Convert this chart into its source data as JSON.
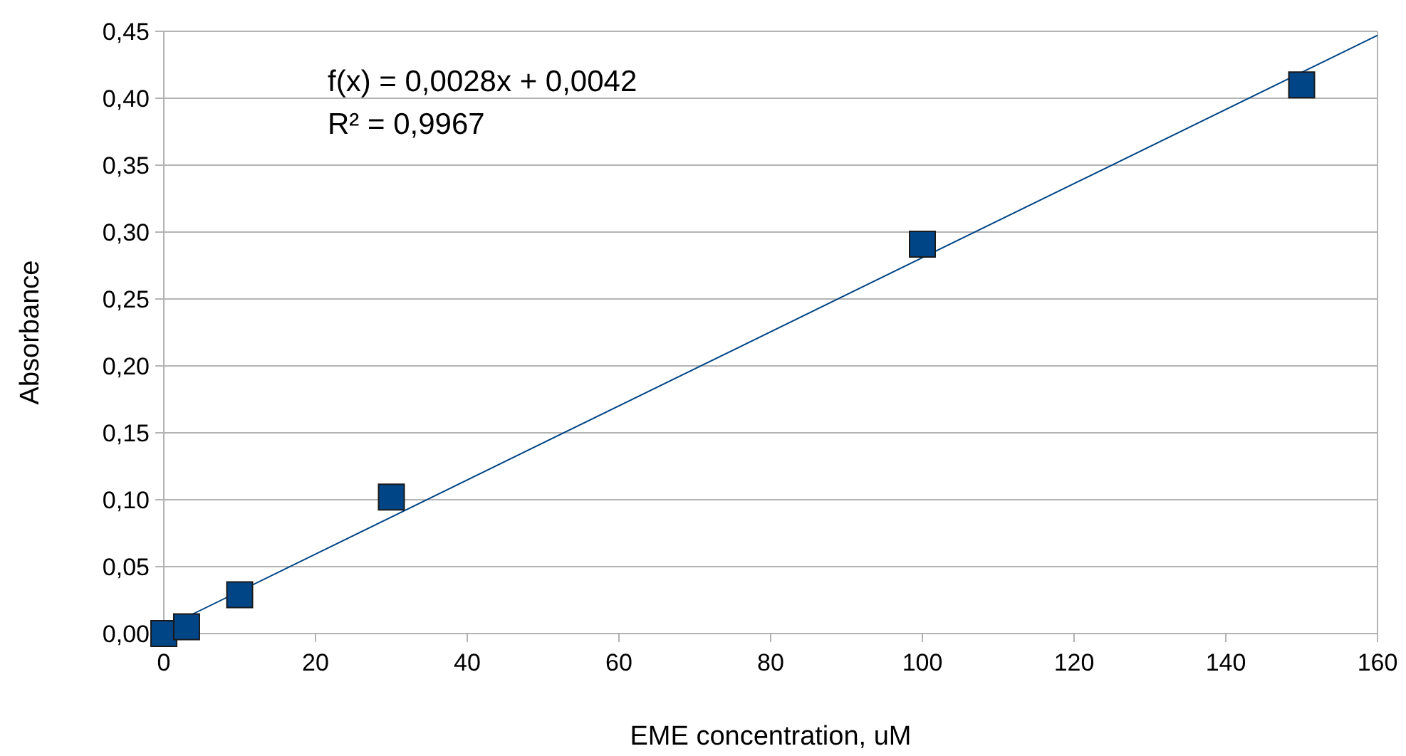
{
  "chart_data": {
    "type": "scatter",
    "xlabel": "EME concentration, uM",
    "ylabel": "Absorbance",
    "annotations": [
      "f(x) = 0,0028x + 0,0042",
      "R² = 0,9967"
    ],
    "series": [
      {
        "color": "#004586",
        "x": [
          0,
          3,
          10,
          30,
          100,
          150
        ],
        "values": [
          0,
          0.005,
          0.029,
          0.102,
          0.291,
          0.41
        ],
        "marker": "square"
      },
      {
        "type": "line",
        "color": "#004586",
        "x": [
          0,
          160
        ],
        "values": [
          0.004,
          0.447
        ],
        "line_style": "solid"
      }
    ],
    "xlim": [
      0,
      160
    ],
    "xticks": [
      0,
      20,
      40,
      60,
      80,
      100,
      120,
      140,
      160
    ],
    "ylim": [
      0,
      0.45
    ],
    "yticks": [
      {
        "value": 0,
        "label": "0,00"
      },
      {
        "value": 0.05,
        "label": "0,05"
      },
      {
        "value": 0.1,
        "label": "0,10"
      },
      {
        "value": 0.15,
        "label": "0,15"
      },
      {
        "value": 0.2,
        "label": "0,20"
      },
      {
        "value": 0.25,
        "label": "0,25"
      },
      {
        "value": 0.3,
        "label": "0,30"
      },
      {
        "value": 0.35,
        "label": "0,35"
      },
      {
        "value": 0.4,
        "label": "0,40"
      },
      {
        "value": 0.45,
        "label": "0,45"
      }
    ],
    "grid": "y"
  }
}
